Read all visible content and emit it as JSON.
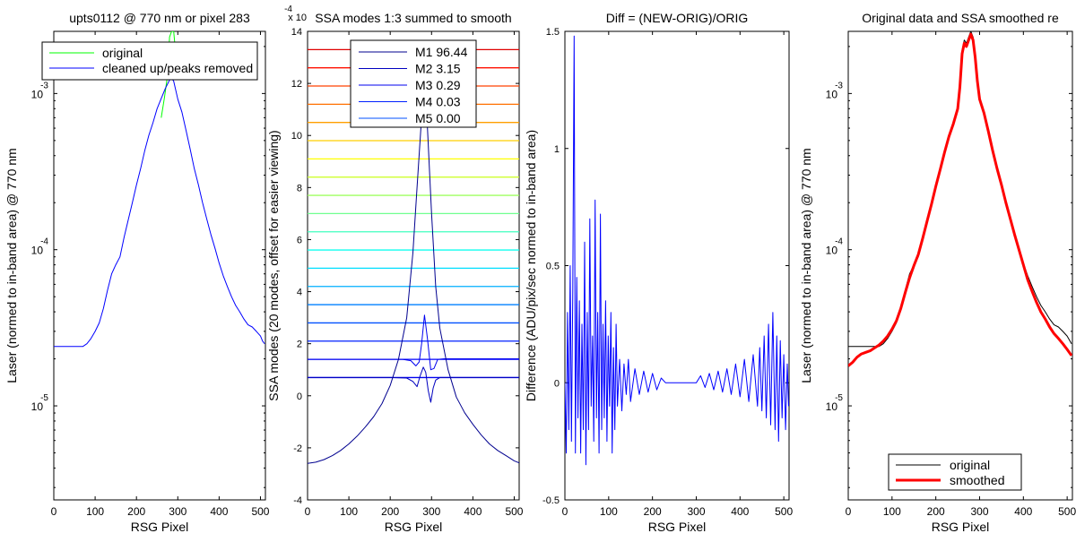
{
  "chart_data": [
    {
      "type": "line",
      "title": "upts0112 @ 770 nm or pixel 283",
      "xlabel": "RSG Pixel",
      "ylabel": "Laser (normed to in-band area) @ 770 nm",
      "xlim": [
        0,
        512
      ],
      "xticks": [
        0,
        100,
        200,
        300,
        400,
        500
      ],
      "xtick_labels": [
        "0",
        "100",
        "200",
        "300",
        "400",
        "500"
      ],
      "yscale": "log",
      "ylim": [
        2.5e-06,
        0.0025
      ],
      "yticks": [
        1e-05,
        0.0001,
        0.001
      ],
      "ytick_labels": [
        "10",
        "10",
        "10"
      ],
      "ytick_exps": [
        "-5",
        "-4",
        "-3"
      ],
      "legend_position": "top-right",
      "series": [
        {
          "name": "original",
          "color": "#00ff00",
          "x": [
            260,
            268,
            275,
            280,
            285,
            290,
            295
          ],
          "y": [
            0.0007,
            0.00095,
            0.0013,
            0.0023,
            0.0025,
            0.0025,
            0.0018
          ]
        },
        {
          "name": "cleaned up/peaks removed",
          "color": "#0000ff",
          "x": [
            0,
            10,
            20,
            30,
            40,
            50,
            60,
            70,
            80,
            90,
            100,
            110,
            120,
            130,
            140,
            150,
            160,
            170,
            180,
            190,
            200,
            210,
            220,
            230,
            240,
            250,
            260,
            270,
            280,
            285,
            290,
            300,
            310,
            320,
            330,
            340,
            350,
            360,
            370,
            380,
            390,
            400,
            410,
            420,
            430,
            440,
            450,
            460,
            470,
            480,
            490,
            500,
            505,
            510
          ],
          "y": [
            2.4e-05,
            2.4e-05,
            2.4e-05,
            2.4e-05,
            2.4e-05,
            2.4e-05,
            2.4e-05,
            2.4e-05,
            2.5e-05,
            2.7e-05,
            3e-05,
            3.4e-05,
            4.2e-05,
            5.5e-05,
            7e-05,
            8e-05,
            9e-05,
            0.00012,
            0.000155,
            0.0002,
            0.00026,
            0.00033,
            0.00043,
            0.00054,
            0.00065,
            0.0008,
            0.00093,
            0.00108,
            0.00122,
            0.00125,
            0.0012,
            0.00092,
            0.00076,
            0.00058,
            0.00044,
            0.00033,
            0.00026,
            0.0002,
            0.000158,
            0.000125,
            0.000102,
            8.2e-05,
            6.8e-05,
            5.8e-05,
            5e-05,
            4.4e-05,
            4e-05,
            3.6e-05,
            3.3e-05,
            3.2e-05,
            3e-05,
            2.8e-05,
            2.6e-05,
            2.5e-05
          ]
        }
      ]
    },
    {
      "type": "line",
      "title": "SSA modes 1:3 summed to smooth",
      "scale_label": "x 10",
      "scale_exp": "-4",
      "xlabel": "RSG Pixel",
      "ylabel": "SSA modes (20 modes, offset for easier viewing)",
      "xlim": [
        0,
        512
      ],
      "xticks": [
        0,
        100,
        200,
        300,
        400,
        500
      ],
      "xtick_labels": [
        "0",
        "100",
        "200",
        "300",
        "400",
        "500"
      ],
      "ylim": [
        -4,
        14
      ],
      "yticks": [
        -4,
        -2,
        0,
        2,
        4,
        6,
        8,
        10,
        12,
        14
      ],
      "ytick_labels": [
        "-4",
        "-2",
        "0",
        "2",
        "4",
        "6",
        "8",
        "10",
        "12",
        "14"
      ],
      "legend_position": "top-center",
      "legend": [
        {
          "label": "M1 96.44",
          "color": "#00008f"
        },
        {
          "label": "M2 3.15",
          "color": "#0000bf"
        },
        {
          "label": "M3 0.29",
          "color": "#0000ef"
        },
        {
          "label": "M4 0.03",
          "color": "#0020ff"
        },
        {
          "label": "M5 0.00",
          "color": "#0050ff"
        }
      ],
      "offsets": [
        0.7,
        1.4,
        2.1,
        2.8,
        3.5,
        4.2,
        4.9,
        5.6,
        6.3,
        7.0,
        7.7,
        8.4,
        9.1,
        9.8,
        10.5,
        11.2,
        11.9,
        12.6,
        13.3
      ],
      "offset_colors": [
        "#0000ef",
        "#0000ff",
        "#0020ff",
        "#0050ff",
        "#0080ff",
        "#00afff",
        "#00dfff",
        "#10ffef",
        "#40ffbf",
        "#70ff8f",
        "#9fff60",
        "#cfff30",
        "#ffff00",
        "#ffcf00",
        "#ff9f00",
        "#ff7000",
        "#ff4000",
        "#ff1000",
        "#df0000"
      ],
      "mode1": {
        "color": "#00008f",
        "x": [
          0,
          20,
          40,
          60,
          80,
          100,
          120,
          140,
          160,
          180,
          200,
          220,
          240,
          255,
          265,
          275,
          283,
          290,
          300,
          310,
          320,
          340,
          360,
          380,
          400,
          420,
          440,
          460,
          480,
          500,
          512
        ],
        "y": [
          -2.6,
          -2.55,
          -2.45,
          -2.3,
          -2.1,
          -1.85,
          -1.55,
          -1.2,
          -0.8,
          -0.3,
          0.4,
          1.4,
          3.0,
          5.5,
          8.0,
          10.5,
          11.3,
          10.3,
          7.0,
          4.2,
          2.6,
          1.0,
          -0.05,
          -0.65,
          -1.1,
          -1.5,
          -1.85,
          -2.1,
          -2.3,
          -2.5,
          -2.58
        ]
      },
      "mode2": {
        "color": "#0000bf",
        "x": [
          0,
          200,
          240,
          255,
          265,
          272,
          280,
          286,
          292,
          298,
          304,
          310,
          320,
          340,
          512
        ],
        "y": [
          0.7,
          0.7,
          0.68,
          0.55,
          0.35,
          0.75,
          1.1,
          0.9,
          0.2,
          -0.25,
          0.3,
          0.6,
          0.7,
          0.7,
          0.7
        ]
      },
      "mode3": {
        "color": "#0000ef",
        "x": [
          0,
          230,
          250,
          262,
          270,
          276,
          283,
          290,
          298,
          306,
          315,
          330,
          512
        ],
        "y": [
          1.4,
          1.4,
          1.35,
          1.15,
          1.3,
          2.0,
          3.1,
          2.2,
          1.0,
          1.05,
          1.4,
          1.42,
          1.42
        ]
      }
    },
    {
      "type": "line",
      "title": "Diff = (NEW-ORIG)/ORIG",
      "xlabel": "RSG Pixel",
      "ylabel": "Difference (ADU/pix/sec normed to in-band area)",
      "xlim": [
        0,
        512
      ],
      "xticks": [
        0,
        100,
        200,
        300,
        400,
        500
      ],
      "xtick_labels": [
        "0",
        "100",
        "200",
        "300",
        "400",
        "500"
      ],
      "ylim": [
        -0.5,
        1.5
      ],
      "yticks": [
        -0.5,
        0,
        0.5,
        1,
        1.5
      ],
      "ytick_labels": [
        "-0.5",
        "0",
        "0.5",
        "1",
        "1.5"
      ],
      "series": [
        {
          "name": "diff",
          "color": "#0000ff",
          "x": [
            0,
            3,
            6,
            9,
            12,
            15,
            18,
            21,
            24,
            27,
            30,
            33,
            36,
            39,
            42,
            45,
            48,
            51,
            54,
            57,
            60,
            63,
            66,
            69,
            72,
            75,
            78,
            81,
            84,
            87,
            90,
            93,
            96,
            99,
            102,
            105,
            108,
            111,
            114,
            117,
            120,
            125,
            130,
            135,
            140,
            145,
            150,
            160,
            170,
            180,
            190,
            200,
            210,
            220,
            230,
            240,
            250,
            260,
            270,
            280,
            290,
            300,
            310,
            320,
            330,
            340,
            350,
            360,
            370,
            380,
            390,
            400,
            410,
            420,
            430,
            440,
            445,
            450,
            455,
            460,
            465,
            470,
            475,
            480,
            484,
            488,
            492,
            496,
            500,
            504,
            508,
            511
          ],
          "y": [
            0.0,
            -0.3,
            0.3,
            -0.2,
            0.5,
            -0.25,
            0.4,
            1.48,
            -0.3,
            0.45,
            -0.15,
            0.35,
            -0.3,
            0.25,
            -0.2,
            0.6,
            -0.35,
            0.3,
            -0.2,
            0.7,
            -0.1,
            0.2,
            -0.25,
            0.78,
            -0.15,
            0.3,
            -0.3,
            0.72,
            -0.2,
            0.25,
            -0.15,
            0.35,
            -0.25,
            0.2,
            -0.1,
            0.3,
            -0.3,
            0.15,
            -0.2,
            0.25,
            -0.1,
            0.1,
            -0.12,
            0.08,
            -0.05,
            0.1,
            -0.08,
            0.06,
            -0.05,
            0.05,
            -0.04,
            0.04,
            -0.03,
            0.02,
            0.0,
            0.0,
            0.0,
            0.0,
            0.0,
            0.0,
            0.0,
            0.0,
            0.03,
            -0.02,
            0.04,
            -0.03,
            0.05,
            -0.04,
            0.06,
            -0.05,
            0.08,
            -0.06,
            0.1,
            -0.08,
            0.12,
            -0.1,
            0.15,
            -0.12,
            0.2,
            -0.15,
            0.25,
            -0.18,
            0.3,
            -0.2,
            0.2,
            -0.25,
            0.18,
            -0.15,
            0.12,
            -0.2,
            0.08,
            -0.1
          ]
        }
      ]
    },
    {
      "type": "line",
      "title": "Original data and SSA smoothed re",
      "xlabel": "RSG Pixel",
      "ylabel": "Laser (normed to in-band area) @ 770 nm",
      "xlim": [
        0,
        512
      ],
      "xticks": [
        0,
        100,
        200,
        300,
        400,
        500
      ],
      "xtick_labels": [
        "0",
        "100",
        "200",
        "300",
        "400",
        "500"
      ],
      "yscale": "log",
      "ylim": [
        2.5e-06,
        0.0025
      ],
      "yticks": [
        1e-05,
        0.0001,
        0.001
      ],
      "ytick_labels": [
        "10",
        "10",
        "10"
      ],
      "ytick_exps": [
        "-5",
        "-4",
        "-3"
      ],
      "legend_position": "bottom-right",
      "series": [
        {
          "name": "original",
          "color": "#000000",
          "x": [
            0,
            10,
            20,
            30,
            40,
            50,
            60,
            70,
            80,
            90,
            100,
            110,
            120,
            130,
            140,
            150,
            160,
            170,
            180,
            190,
            200,
            210,
            220,
            230,
            240,
            250,
            255,
            260,
            265,
            270,
            275,
            280,
            285,
            290,
            295,
            300,
            310,
            320,
            330,
            340,
            350,
            360,
            370,
            380,
            390,
            400,
            410,
            420,
            430,
            440,
            450,
            460,
            470,
            480,
            490,
            500,
            510
          ],
          "y": [
            2.4e-05,
            2.4e-05,
            2.4e-05,
            2.4e-05,
            2.4e-05,
            2.4e-05,
            2.4e-05,
            2.4e-05,
            2.5e-05,
            2.7e-05,
            3e-05,
            3.4e-05,
            4.2e-05,
            5.5e-05,
            7e-05,
            8e-05,
            9e-05,
            0.00012,
            0.000155,
            0.0002,
            0.00026,
            0.00033,
            0.00043,
            0.00054,
            0.00065,
            0.0008,
            0.0012,
            0.0019,
            0.0022,
            0.0021,
            0.0023,
            0.0025,
            0.0023,
            0.0018,
            0.0012,
            0.00092,
            0.00076,
            0.00058,
            0.00044,
            0.00033,
            0.00026,
            0.0002,
            0.000158,
            0.000125,
            0.000102,
            8.2e-05,
            6.8e-05,
            5.8e-05,
            5e-05,
            4.4e-05,
            4e-05,
            3.6e-05,
            3.3e-05,
            3.2e-05,
            3e-05,
            2.8e-05,
            2.5e-05
          ]
        },
        {
          "name": "smoothed",
          "color": "#ff0000",
          "x": [
            0,
            10,
            20,
            30,
            40,
            50,
            60,
            70,
            80,
            90,
            100,
            110,
            120,
            130,
            140,
            150,
            160,
            170,
            180,
            190,
            200,
            210,
            220,
            230,
            240,
            250,
            255,
            260,
            265,
            270,
            275,
            280,
            285,
            290,
            295,
            300,
            310,
            320,
            330,
            340,
            350,
            360,
            370,
            380,
            390,
            400,
            410,
            420,
            430,
            440,
            450,
            460,
            470,
            480,
            490,
            500,
            510
          ],
          "y": [
            1.8e-05,
            1.9e-05,
            2.05e-05,
            2.15e-05,
            2.2e-05,
            2.25e-05,
            2.35e-05,
            2.45e-05,
            2.6e-05,
            2.8e-05,
            3.1e-05,
            3.5e-05,
            4.2e-05,
            5.3e-05,
            6.6e-05,
            7.9e-05,
            9.3e-05,
            0.000118,
            0.000152,
            0.000195,
            0.000255,
            0.000325,
            0.00042,
            0.00053,
            0.00064,
            0.0008,
            0.0011,
            0.0018,
            0.0021,
            0.002,
            0.0022,
            0.0024,
            0.0022,
            0.0017,
            0.0012,
            0.00092,
            0.00075,
            0.00057,
            0.00043,
            0.00033,
            0.00026,
            0.0002,
            0.000158,
            0.000125,
            0.0001,
            8e-05,
            6.4e-05,
            5.4e-05,
            4.6e-05,
            4e-05,
            3.6e-05,
            3.2e-05,
            2.9e-05,
            2.7e-05,
            2.5e-05,
            2.3e-05,
            2.1e-05
          ]
        }
      ]
    }
  ]
}
